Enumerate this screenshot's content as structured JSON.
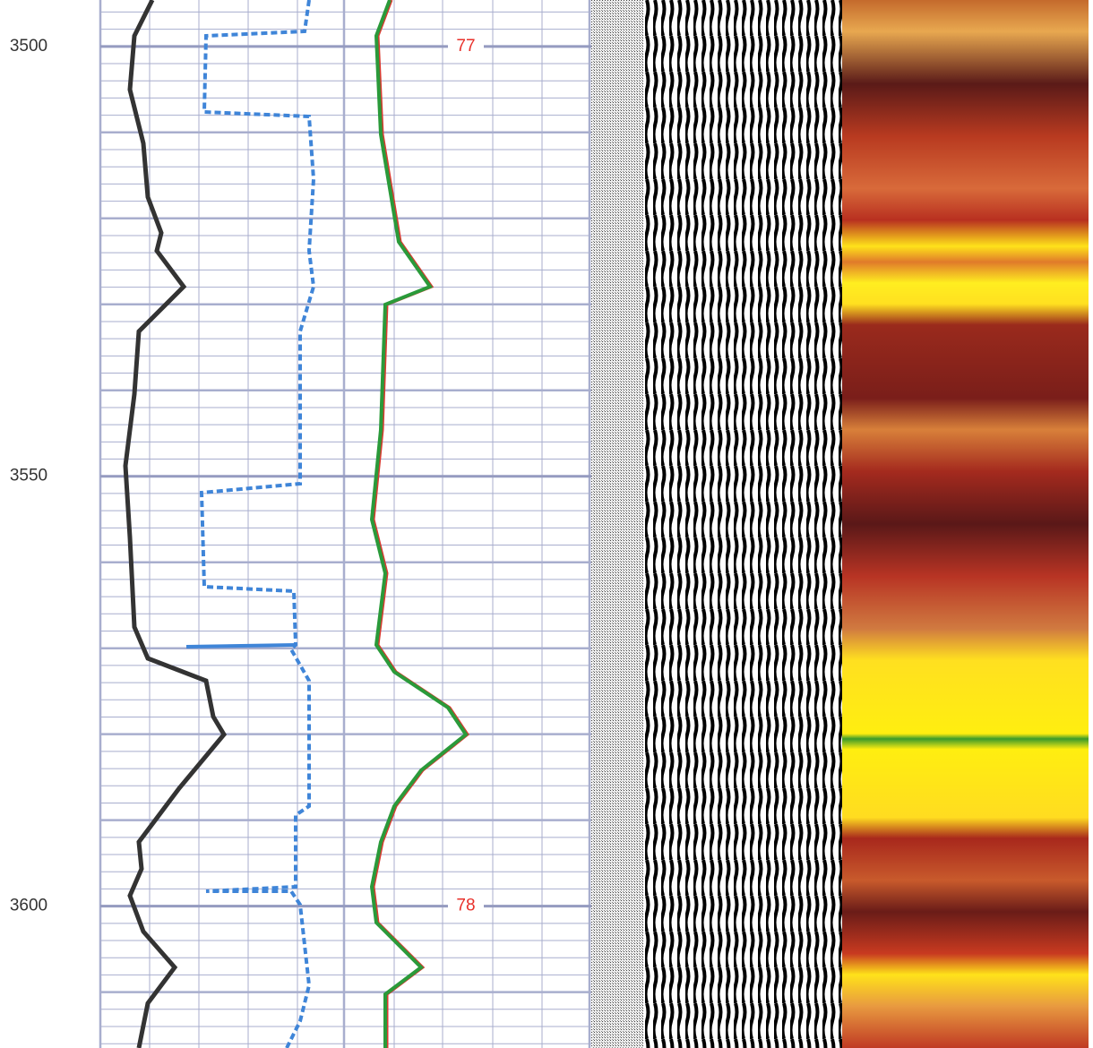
{
  "chart_data": {
    "type": "well-log",
    "ylim": [
      3494.6,
      3616.5
    ],
    "yticks": [
      3500,
      3550,
      3600
    ],
    "annotations": [
      {
        "label": "77",
        "depth": 3500
      },
      {
        "label": "78",
        "depth": 3600
      }
    ]
  }
}
